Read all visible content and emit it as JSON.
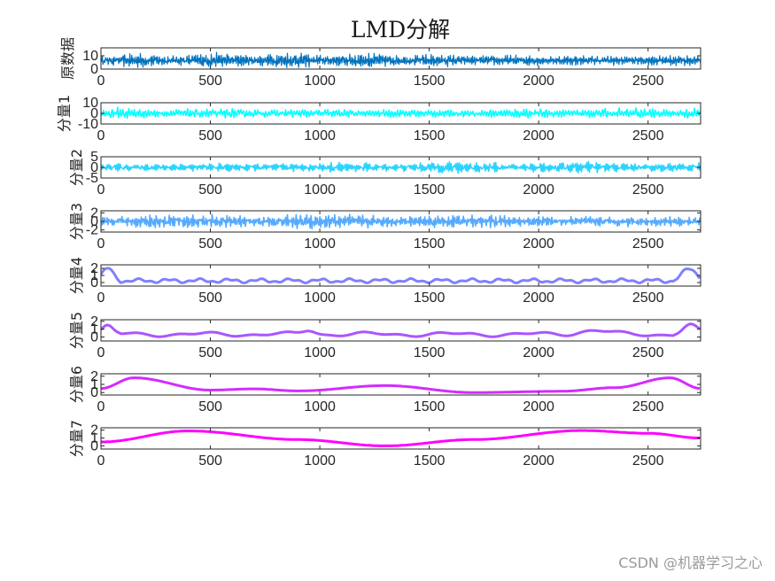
{
  "figure": {
    "title": "LMD分解",
    "watermark": "CSDN @机器学习之心"
  },
  "chart_data": [
    {
      "type": "line",
      "ylabel": "原数据",
      "xlim": [
        0,
        2740
      ],
      "ylim": [
        0,
        16
      ],
      "yticks": [
        "10",
        "0"
      ],
      "yticks_values": [
        10,
        0
      ],
      "xticks": [
        0,
        500,
        1000,
        1500,
        2000,
        2500
      ],
      "color": "#0072bd",
      "approx_range": [
        0.5,
        13
      ],
      "mean": 6.5,
      "grid": false
    },
    {
      "type": "line",
      "ylabel": "分量1",
      "xlim": [
        0,
        2740
      ],
      "ylim": [
        -10,
        10
      ],
      "yticks": [
        "10",
        "0",
        "-10"
      ],
      "yticks_values": [
        10,
        0,
        -10
      ],
      "xticks": [
        0,
        500,
        1000,
        1500,
        2000,
        2500
      ],
      "color": "#00ffff",
      "approx_range": [
        -6,
        6
      ],
      "grid": false
    },
    {
      "type": "line",
      "ylabel": "分量2",
      "xlim": [
        0,
        2740
      ],
      "ylim": [
        -5,
        5
      ],
      "yticks": [
        "5",
        "0",
        "-5"
      ],
      "yticks_values": [
        5,
        0,
        -5
      ],
      "xticks": [
        0,
        500,
        1000,
        1500,
        2000,
        2500
      ],
      "color": "#2bd4ff",
      "approx_range": [
        -3,
        3
      ],
      "grid": false
    },
    {
      "type": "line",
      "ylabel": "分量3",
      "xlim": [
        0,
        2740
      ],
      "ylim": [
        -2.5,
        2.5
      ],
      "yticks": [
        "2",
        "0",
        "-2"
      ],
      "yticks_values": [
        2,
        0,
        -2
      ],
      "xticks": [
        0,
        500,
        1000,
        1500,
        2000,
        2500
      ],
      "color": "#55aaff",
      "approx_range": [
        -2,
        2
      ],
      "grid": false
    },
    {
      "type": "line",
      "ylabel": "分量4",
      "xlim": [
        0,
        2740
      ],
      "ylim": [
        -0.5,
        2.5
      ],
      "yticks": [
        "2",
        "1",
        "0"
      ],
      "yticks_values": [
        2,
        1,
        0
      ],
      "xticks": [
        0,
        500,
        1000,
        1500,
        2000,
        2500
      ],
      "color": "#8080ff",
      "approx_range": [
        -0.2,
        2
      ],
      "grid": false
    },
    {
      "type": "line",
      "ylabel": "分量5",
      "xlim": [
        0,
        2740
      ],
      "ylim": [
        -0.5,
        2.2
      ],
      "yticks": [
        "2",
        "1",
        "0"
      ],
      "yticks_values": [
        2,
        1,
        0
      ],
      "xticks": [
        0,
        500,
        1000,
        1500,
        2000,
        2500
      ],
      "color": "#aa55ff",
      "approx_range": [
        0,
        1.6
      ],
      "grid": false
    },
    {
      "type": "line",
      "ylabel": "分量6",
      "xlim": [
        0,
        2740
      ],
      "ylim": [
        -0.3,
        2.3
      ],
      "yticks": [
        "2",
        "1",
        "0"
      ],
      "yticks_values": [
        2,
        1,
        0
      ],
      "xticks": [
        0,
        500,
        1000,
        1500,
        2000,
        2500
      ],
      "color": "#d42bff",
      "x": [
        0,
        150,
        500,
        700,
        900,
        1300,
        1700,
        2100,
        2350,
        2600,
        2740
      ],
      "y": [
        0.5,
        1.8,
        0.3,
        0.45,
        0.2,
        0.85,
        0.0,
        0.15,
        0.6,
        1.8,
        0.5
      ],
      "grid": false
    },
    {
      "type": "line",
      "ylabel": "分量7",
      "xlim": [
        0,
        2740
      ],
      "ylim": [
        -0.4,
        2.3
      ],
      "yticks": [
        "2",
        "1",
        "0"
      ],
      "yticks_values": [
        2,
        1,
        0
      ],
      "xticks": [
        0,
        500,
        1000,
        1500,
        2000,
        2500
      ],
      "color": "#ff00ff",
      "x": [
        0,
        400,
        900,
        1300,
        1700,
        2200,
        2500,
        2740
      ],
      "y": [
        0.5,
        1.9,
        0.8,
        0.0,
        0.8,
        1.95,
        1.6,
        1.0
      ],
      "grid": false
    }
  ]
}
